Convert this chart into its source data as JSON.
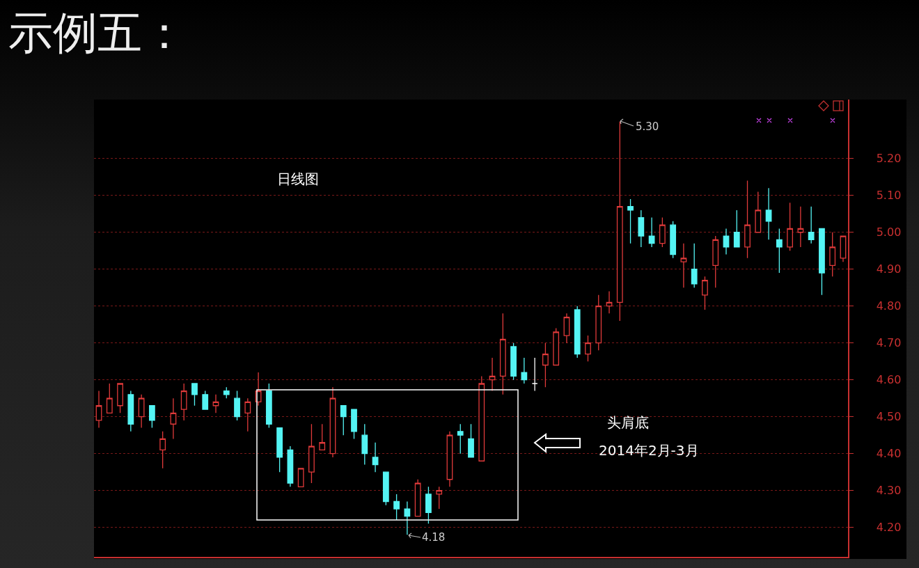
{
  "chart_data": {
    "type": "candlestick",
    "title": "示例五：",
    "annotations": [
      "日线图",
      "5.30",
      "头肩底",
      "2014年2月-3月",
      "4.18"
    ],
    "categories": [
      null,
      null,
      null,
      null,
      null,
      null,
      null,
      null,
      null,
      null,
      null,
      null,
      null,
      null,
      null,
      null,
      null,
      null,
      null,
      null,
      null,
      null,
      null,
      null,
      null,
      null,
      null,
      null,
      null,
      null,
      null,
      null,
      null,
      null,
      null,
      null,
      null,
      null,
      null,
      null,
      null,
      null,
      null,
      null,
      null,
      null,
      null,
      null,
      null,
      null,
      null,
      null,
      null,
      null,
      null,
      null,
      null,
      null,
      null,
      null,
      null,
      null,
      null,
      null,
      null,
      null,
      null,
      null,
      null,
      null,
      null
    ],
    "ohlc": [
      [
        4.49,
        4.57,
        4.47,
        4.53
      ],
      [
        4.51,
        4.59,
        4.51,
        4.55
      ],
      [
        4.53,
        4.59,
        4.51,
        4.59
      ],
      [
        4.56,
        4.57,
        4.46,
        4.48
      ],
      [
        4.5,
        4.56,
        4.47,
        4.55
      ],
      [
        4.53,
        4.53,
        4.47,
        4.49
      ],
      [
        4.41,
        4.46,
        4.36,
        4.44
      ],
      [
        4.48,
        4.55,
        4.44,
        4.51
      ],
      [
        4.52,
        4.59,
        4.49,
        4.57
      ],
      [
        4.59,
        4.59,
        4.53,
        4.56
      ],
      [
        4.56,
        4.57,
        4.52,
        4.52
      ],
      [
        4.53,
        4.56,
        4.51,
        4.54
      ],
      [
        4.57,
        4.58,
        4.55,
        4.56
      ],
      [
        4.55,
        4.57,
        4.49,
        4.5
      ],
      [
        4.51,
        4.55,
        4.46,
        4.54
      ],
      [
        4.54,
        4.62,
        4.53,
        4.57
      ],
      [
        4.57,
        4.59,
        4.47,
        4.48
      ],
      [
        4.47,
        4.47,
        4.35,
        4.39
      ],
      [
        4.41,
        4.42,
        4.31,
        4.32
      ],
      [
        4.31,
        4.36,
        4.31,
        4.36
      ],
      [
        4.35,
        4.48,
        4.32,
        4.42
      ],
      [
        4.41,
        4.48,
        4.41,
        4.43
      ],
      [
        4.4,
        4.58,
        4.39,
        4.55
      ],
      [
        4.53,
        4.53,
        4.45,
        4.5
      ],
      [
        4.52,
        4.52,
        4.44,
        4.46
      ],
      [
        4.45,
        4.48,
        4.37,
        4.4
      ],
      [
        4.39,
        4.43,
        4.35,
        4.37
      ],
      [
        4.35,
        4.35,
        4.26,
        4.27
      ],
      [
        4.27,
        4.29,
        4.22,
        4.25
      ],
      [
        4.25,
        4.27,
        4.18,
        4.23
      ],
      [
        4.23,
        4.33,
        4.23,
        4.32
      ],
      [
        4.29,
        4.31,
        4.21,
        4.24
      ],
      [
        4.29,
        4.31,
        4.25,
        4.3
      ],
      [
        4.33,
        4.46,
        4.31,
        4.45
      ],
      [
        4.46,
        4.48,
        4.4,
        4.45
      ],
      [
        4.44,
        4.48,
        4.39,
        4.39
      ],
      [
        4.38,
        4.61,
        4.38,
        4.59
      ],
      [
        4.6,
        4.66,
        4.57,
        4.61
      ],
      [
        4.61,
        4.78,
        4.56,
        4.71
      ],
      [
        4.69,
        4.7,
        4.6,
        4.61
      ],
      [
        4.62,
        4.66,
        4.59,
        4.6
      ],
      [
        4.59,
        4.66,
        4.57,
        4.59
      ],
      [
        4.64,
        4.7,
        4.58,
        4.67
      ],
      [
        4.64,
        4.74,
        4.64,
        4.73
      ],
      [
        4.72,
        4.78,
        4.7,
        4.77
      ],
      [
        4.79,
        4.8,
        4.66,
        4.67
      ],
      [
        4.67,
        4.72,
        4.65,
        4.7
      ],
      [
        4.7,
        4.83,
        4.68,
        4.8
      ],
      [
        4.8,
        4.84,
        4.78,
        4.81
      ],
      [
        4.81,
        5.3,
        4.76,
        5.07
      ],
      [
        5.07,
        5.09,
        4.97,
        5.06
      ],
      [
        5.04,
        5.06,
        4.96,
        4.99
      ],
      [
        4.99,
        5.04,
        4.96,
        4.97
      ],
      [
        4.97,
        5.04,
        4.96,
        5.02
      ],
      [
        5.02,
        5.03,
        4.93,
        4.94
      ],
      [
        4.92,
        4.97,
        4.85,
        4.93
      ],
      [
        4.9,
        4.97,
        4.85,
        4.86
      ],
      [
        4.83,
        4.88,
        4.79,
        4.87
      ],
      [
        4.91,
        4.99,
        4.85,
        4.98
      ],
      [
        4.99,
        5.01,
        4.94,
        4.96
      ],
      [
        5.0,
        5.06,
        4.96,
        4.96
      ],
      [
        4.96,
        5.14,
        4.93,
        5.02
      ],
      [
        5.0,
        5.11,
        5.0,
        5.06
      ],
      [
        5.06,
        5.12,
        4.98,
        5.03
      ],
      [
        4.98,
        5.01,
        4.89,
        4.96
      ],
      [
        4.96,
        5.08,
        4.95,
        5.01
      ],
      [
        5.0,
        5.07,
        4.96,
        5.01
      ],
      [
        5.0,
        5.07,
        4.97,
        4.98
      ],
      [
        5.01,
        5.01,
        4.83,
        4.89
      ],
      [
        4.91,
        5.0,
        4.88,
        4.96
      ],
      [
        4.93,
        4.99,
        4.92,
        4.99
      ]
    ],
    "colors": [
      "#e03a3a",
      "#e03a3a",
      "#e03a3a",
      "#54f4f4",
      "#e03a3a",
      "#54f4f4",
      "#e03a3a",
      "#e03a3a",
      "#e03a3a",
      "#54f4f4",
      "#54f4f4",
      "#e03a3a",
      "#54f4f4",
      "#54f4f4",
      "#e03a3a",
      "#e03a3a",
      "#54f4f4",
      "#54f4f4",
      "#54f4f4",
      "#e03a3a",
      "#e03a3a",
      "#e03a3a",
      "#e03a3a",
      "#54f4f4",
      "#54f4f4",
      "#54f4f4",
      "#54f4f4",
      "#54f4f4",
      "#54f4f4",
      "#54f4f4",
      "#e03a3a",
      "#54f4f4",
      "#e03a3a",
      "#e03a3a",
      "#54f4f4",
      "#54f4f4",
      "#e03a3a",
      "#e03a3a",
      "#e03a3a",
      "#54f4f4",
      "#54f4f4",
      "#ffffff",
      "#e03a3a",
      "#e03a3a",
      "#e03a3a",
      "#54f4f4",
      "#e03a3a",
      "#e03a3a",
      "#e03a3a",
      "#e03a3a",
      "#54f4f4",
      "#54f4f4",
      "#54f4f4",
      "#e03a3a",
      "#54f4f4",
      "#e03a3a",
      "#54f4f4",
      "#e03a3a",
      "#e03a3a",
      "#54f4f4",
      "#54f4f4",
      "#e03a3a",
      "#e03a3a",
      "#54f4f4",
      "#54f4f4",
      "#e03a3a",
      "#e03a3a",
      "#54f4f4",
      "#54f4f4",
      "#e03a3a",
      "#e03a3a"
    ],
    "ylim": [
      4.12,
      5.36
    ],
    "yticks": [
      {
        "value": 4.2,
        "label": "4.20"
      },
      {
        "value": 4.3,
        "label": "4.30"
      },
      {
        "value": 4.4,
        "label": "4.40"
      },
      {
        "value": 4.5,
        "label": "4.50"
      },
      {
        "value": 4.6,
        "label": "4.60"
      },
      {
        "value": 4.7,
        "label": "4.70"
      },
      {
        "value": 4.8,
        "label": "4.80"
      },
      {
        "value": 4.9,
        "label": "4.90"
      },
      {
        "value": 5.0,
        "label": "5.00"
      },
      {
        "value": 5.1,
        "label": "5.10"
      },
      {
        "value": 5.2,
        "label": "5.20"
      }
    ],
    "grid": "y",
    "tick_labels": "y"
  }
}
